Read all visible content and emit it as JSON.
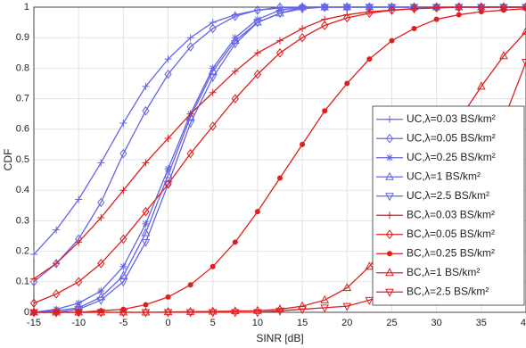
{
  "chart_data": {
    "type": "line",
    "xlabel": "SINR [dB]",
    "ylabel": "CDF",
    "x": [
      -15,
      -12.5,
      -10,
      -7.5,
      -5,
      -2.5,
      0,
      2.5,
      5,
      7.5,
      10,
      12.5,
      15,
      17.5,
      20,
      22.5,
      25,
      27.5,
      30,
      32.5,
      35,
      37.5,
      40
    ],
    "xlim": [
      -15,
      40
    ],
    "xticks": [
      -15,
      -10,
      -5,
      0,
      5,
      10,
      15,
      20,
      25,
      30,
      35,
      40
    ],
    "ylim": [
      0,
      1
    ],
    "yticks": [
      0,
      0.1,
      0.2,
      0.3,
      0.4,
      0.5,
      0.6,
      0.7,
      0.8,
      0.9,
      1
    ],
    "grid": true,
    "legend": "right",
    "series": [
      {
        "name": "UC,λ=0.03 BS/km²",
        "color": "#6464e6",
        "marker": "plus",
        "values": [
          0.19,
          0.27,
          0.37,
          0.49,
          0.62,
          0.74,
          0.83,
          0.9,
          0.95,
          0.975,
          0.99,
          0.997,
          1,
          1,
          1,
          1,
          1,
          1,
          1,
          1,
          1,
          1,
          1
        ]
      },
      {
        "name": "UC,λ=0.05 BS/km²",
        "color": "#6464e6",
        "marker": "diamond",
        "values": [
          0.1,
          0.16,
          0.24,
          0.36,
          0.52,
          0.66,
          0.78,
          0.87,
          0.93,
          0.97,
          0.99,
          1,
          1,
          1,
          1,
          1,
          1,
          1,
          1,
          1,
          1,
          1,
          1
        ]
      },
      {
        "name": "UC,λ=0.25 BS/km²",
        "color": "#6464e6",
        "marker": "asterisk",
        "values": [
          0,
          0.01,
          0.03,
          0.07,
          0.15,
          0.29,
          0.47,
          0.65,
          0.8,
          0.9,
          0.96,
          0.99,
          1,
          1,
          1,
          1,
          1,
          1,
          1,
          1,
          1,
          1,
          1
        ]
      },
      {
        "name": "UC,λ=1 BS/km²",
        "color": "#6464e6",
        "marker": "triangle",
        "values": [
          0,
          0.005,
          0.015,
          0.05,
          0.12,
          0.26,
          0.45,
          0.64,
          0.79,
          0.89,
          0.95,
          0.98,
          1,
          1,
          1,
          1,
          1,
          1,
          1,
          1,
          1,
          1,
          1
        ]
      },
      {
        "name": "UC,λ=2.5 BS/km²",
        "color": "#6464e6",
        "marker": "down-triangle",
        "values": [
          0,
          0,
          0.01,
          0.04,
          0.1,
          0.23,
          0.42,
          0.62,
          0.77,
          0.88,
          0.95,
          0.98,
          0.995,
          1,
          1,
          1,
          1,
          1,
          1,
          1,
          1,
          1,
          1
        ]
      },
      {
        "name": "BC,λ=0.03 BS/km²",
        "color": "#e01e1e",
        "marker": "plus",
        "values": [
          0.11,
          0.16,
          0.23,
          0.31,
          0.4,
          0.49,
          0.57,
          0.65,
          0.72,
          0.79,
          0.85,
          0.89,
          0.93,
          0.96,
          0.975,
          0.985,
          0.99,
          0.995,
          0.997,
          1,
          1,
          1,
          1
        ]
      },
      {
        "name": "BC,λ=0.05 BS/km²",
        "color": "#e01e1e",
        "marker": "diamond",
        "values": [
          0.03,
          0.06,
          0.1,
          0.16,
          0.24,
          0.33,
          0.42,
          0.52,
          0.61,
          0.7,
          0.78,
          0.85,
          0.9,
          0.94,
          0.965,
          0.98,
          0.99,
          0.995,
          0.998,
          1,
          1,
          1,
          1
        ]
      },
      {
        "name": "BC,λ=0.25 BS/km²",
        "color": "#e01e1e",
        "marker": "dot",
        "values": [
          0,
          0,
          0,
          0.005,
          0.01,
          0.025,
          0.05,
          0.09,
          0.15,
          0.23,
          0.33,
          0.44,
          0.55,
          0.66,
          0.75,
          0.83,
          0.89,
          0.93,
          0.96,
          0.975,
          0.985,
          0.99,
          0.995
        ]
      },
      {
        "name": "BC,λ=1 BS/km²",
        "color": "#e01e1e",
        "marker": "triangle",
        "values": [
          0,
          0,
          0,
          0,
          0,
          0,
          0.001,
          0.002,
          0.003,
          0.004,
          0.005,
          0.01,
          0.02,
          0.04,
          0.08,
          0.15,
          0.25,
          0.37,
          0.5,
          0.63,
          0.74,
          0.84,
          0.92
        ]
      },
      {
        "name": "BC,λ=2.5 BS/km²",
        "color": "#e01e1e",
        "marker": "down-triangle",
        "values": [
          0,
          0,
          0,
          0,
          0,
          0,
          0,
          0,
          0,
          0,
          0,
          0.005,
          0.01,
          0.015,
          0.02,
          0.04,
          0.07,
          0.12,
          0.19,
          0.3,
          0.45,
          0.63,
          0.82
        ]
      }
    ]
  }
}
